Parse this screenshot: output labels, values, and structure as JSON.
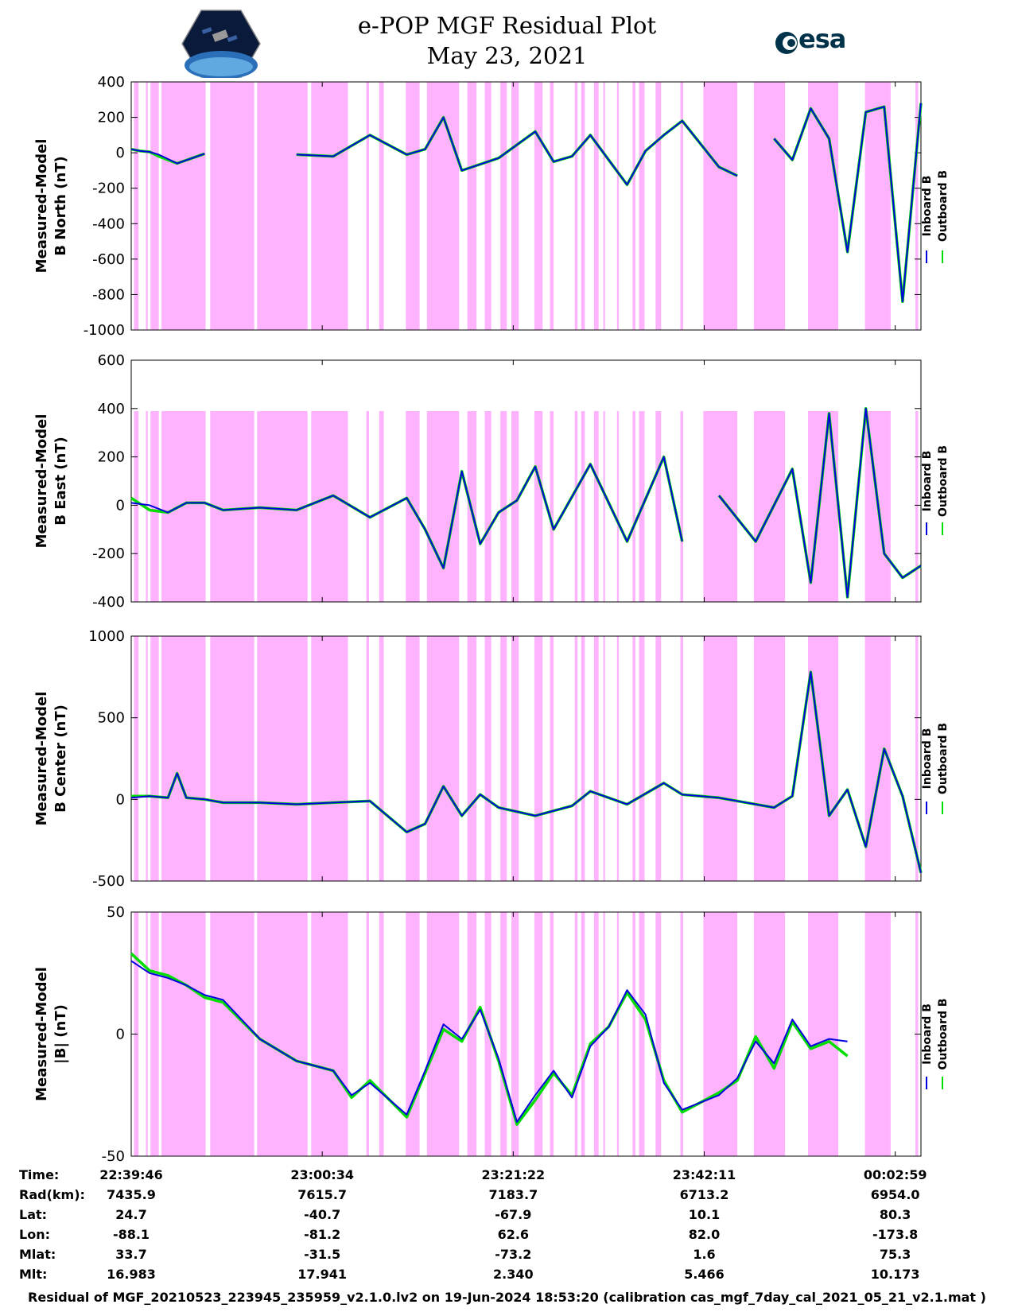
{
  "header": {
    "title": "e-POP MGF Residual Plot",
    "date": "May 23, 2021",
    "left_logo": "cassiope-mission-logo",
    "right_logo": "esa-logo",
    "right_logo_text": "esa"
  },
  "colors": {
    "inboard": "#0000dd",
    "outboard": "#00dd00",
    "gap_shading": "#ffb3ff"
  },
  "legend": {
    "inboard": "Inboard B",
    "outboard": "Outboard B"
  },
  "chart_data": [
    {
      "type": "line",
      "panel": "B North",
      "ylabel_line1": "Measured-Model",
      "ylabel_line2": "B North (nT)",
      "ylim": [
        -1000,
        400
      ],
      "yticks": [
        "400",
        "200",
        "0",
        "-200",
        "-400",
        "-600",
        "-800",
        "-1000"
      ],
      "ytick_values": [
        400,
        200,
        0,
        -200,
        -400,
        -600,
        -800,
        -1000
      ],
      "x_minutes": [
        0,
        1,
        2,
        3,
        5,
        8,
        10,
        12,
        14,
        18,
        22,
        26,
        30,
        32,
        34,
        36,
        40,
        44,
        46,
        48,
        50,
        54,
        56,
        58,
        60,
        64,
        66,
        68,
        70,
        72,
        74,
        76,
        78,
        80,
        82,
        84,
        86
      ],
      "series": [
        {
          "name": "Inboard B",
          "values": [
            20,
            10,
            5,
            -10,
            -60,
            -5,
            null,
            -5,
            null,
            -10,
            -20,
            100,
            -10,
            20,
            200,
            -100,
            -30,
            120,
            -50,
            -20,
            100,
            -180,
            10,
            100,
            180,
            -80,
            -130,
            null,
            80,
            -40,
            250,
            80,
            -560,
            230,
            260,
            -840,
            280
          ]
        },
        {
          "name": "Outboard B",
          "values": [
            20,
            10,
            5,
            -20,
            -60,
            -5,
            null,
            -5,
            null,
            -10,
            -20,
            100,
            -10,
            20,
            200,
            -100,
            -30,
            120,
            -50,
            -20,
            100,
            -180,
            10,
            100,
            180,
            -80,
            -130,
            null,
            80,
            -40,
            250,
            80,
            -560,
            230,
            260,
            -840,
            280
          ]
        }
      ]
    },
    {
      "type": "line",
      "panel": "B East",
      "ylabel_line1": "Measured-Model",
      "ylabel_line2": "B East (nT)",
      "ylim": [
        -400,
        600
      ],
      "yticks": [
        "600",
        "400",
        "200",
        "0",
        "-200",
        "-400"
      ],
      "ytick_values": [
        600,
        400,
        200,
        0,
        -200,
        -400
      ],
      "x_minutes": [
        0,
        2,
        4,
        6,
        8,
        10,
        14,
        18,
        22,
        26,
        30,
        32,
        34,
        36,
        38,
        40,
        42,
        44,
        46,
        50,
        54,
        58,
        60,
        62,
        64,
        68,
        72,
        74,
        76,
        78,
        80,
        82,
        84,
        86
      ],
      "series": [
        {
          "name": "Inboard B",
          "values": [
            10,
            0,
            -30,
            10,
            10,
            -20,
            -10,
            -20,
            40,
            -50,
            30,
            -100,
            -260,
            140,
            -160,
            -30,
            20,
            160,
            -100,
            170,
            -150,
            200,
            -150,
            null,
            40,
            -150,
            150,
            -320,
            380,
            -380,
            400,
            -200,
            -300,
            -250
          ]
        },
        {
          "name": "Outboard B",
          "values": [
            30,
            -20,
            -30,
            10,
            10,
            -20,
            -10,
            -20,
            40,
            -50,
            30,
            -100,
            -260,
            140,
            -160,
            -30,
            20,
            160,
            -100,
            170,
            -150,
            200,
            -150,
            null,
            40,
            -150,
            150,
            -320,
            380,
            -380,
            400,
            -200,
            -300,
            -250
          ]
        }
      ]
    },
    {
      "type": "line",
      "panel": "B Center",
      "ylabel_line1": "Measured-Model",
      "ylabel_line2": "B Center (nT)",
      "ylim": [
        -500,
        1000
      ],
      "yticks": [
        "1000",
        "500",
        "0",
        "-500"
      ],
      "ytick_values": [
        1000,
        500,
        0,
        -500
      ],
      "x_minutes": [
        0,
        2,
        4,
        5,
        6,
        8,
        10,
        14,
        18,
        22,
        26,
        30,
        32,
        34,
        36,
        38,
        40,
        44,
        48,
        50,
        54,
        58,
        60,
        64,
        70,
        72,
        74,
        76,
        78,
        80,
        82,
        84,
        86
      ],
      "series": [
        {
          "name": "Inboard B",
          "values": [
            10,
            20,
            10,
            160,
            10,
            0,
            -20,
            -20,
            -30,
            -20,
            -10,
            -200,
            -150,
            80,
            -100,
            30,
            -50,
            -100,
            -40,
            50,
            -30,
            100,
            30,
            10,
            -50,
            20,
            780,
            -100,
            60,
            -290,
            310,
            20,
            -450
          ]
        },
        {
          "name": "Outboard B",
          "values": [
            20,
            20,
            10,
            160,
            10,
            0,
            -20,
            -20,
            -30,
            -20,
            -10,
            -200,
            -150,
            80,
            -100,
            30,
            -50,
            -100,
            -40,
            50,
            -30,
            100,
            30,
            10,
            -50,
            20,
            780,
            -100,
            60,
            -290,
            310,
            20,
            -450
          ]
        }
      ]
    },
    {
      "type": "line",
      "panel": "|B|",
      "ylabel_line1": "Measured-Model",
      "ylabel_line2": "|B| (nT)",
      "ylim": [
        -50,
        50
      ],
      "yticks": [
        "50",
        "0",
        "-50"
      ],
      "ytick_values": [
        50,
        0,
        -50
      ],
      "x_minutes": [
        0,
        2,
        4,
        6,
        8,
        10,
        14,
        18,
        22,
        24,
        26,
        30,
        32,
        34,
        36,
        38,
        40,
        42,
        44,
        46,
        48,
        50,
        52,
        54,
        56,
        58,
        60,
        64,
        66,
        68,
        70,
        72,
        74,
        76,
        78,
        80,
        82,
        84,
        86
      ],
      "series": [
        {
          "name": "Inboard B",
          "values": [
            30,
            25,
            23,
            20,
            16,
            14,
            -2,
            -11,
            -15,
            -25,
            -20,
            -33,
            -15,
            4,
            -2,
            10,
            -10,
            -36,
            -25,
            -15,
            -26,
            -5,
            3,
            18,
            8,
            -20,
            -31,
            -25,
            -18,
            -3,
            -12,
            6,
            -5,
            -2,
            -3,
            null,
            null,
            null,
            null
          ]
        },
        {
          "name": "Outboard B",
          "values": [
            33,
            26,
            24,
            20,
            15,
            13,
            -2,
            -11,
            -15,
            -26,
            -19,
            -34,
            -16,
            2,
            -3,
            11,
            -11,
            -37,
            -27,
            -16,
            -25,
            -4,
            3,
            17,
            6,
            -19,
            -32,
            -24,
            -19,
            -1,
            -14,
            5,
            -6,
            -3,
            -9,
            null,
            null,
            null,
            null
          ]
        }
      ]
    }
  ],
  "gap_intervals_minutes": [
    [
      0.3,
      0.8
    ],
    [
      1.6,
      1.8
    ],
    [
      2.1,
      3.0
    ],
    [
      3.3,
      8.1
    ],
    [
      8.6,
      13.4
    ],
    [
      13.7,
      19.2
    ],
    [
      19.6,
      23.6
    ],
    [
      25.6,
      25.9
    ],
    [
      27.0,
      27.5
    ],
    [
      29.9,
      31.4
    ],
    [
      32.2,
      35.7
    ],
    [
      36.6,
      37.6
    ],
    [
      38.5,
      39.2
    ],
    [
      40.2,
      40.9
    ],
    [
      41.4,
      42.2
    ],
    [
      43.9,
      44.8
    ],
    [
      45.6,
      46.0
    ],
    [
      48.3,
      48.6
    ],
    [
      49.0,
      49.4
    ],
    [
      50.4,
      50.9
    ],
    [
      51.4,
      51.6
    ],
    [
      52.9,
      53.1
    ],
    [
      54.6,
      54.9
    ],
    [
      55.3,
      55.9
    ],
    [
      57.1,
      57.7
    ],
    [
      59.8,
      60.1
    ],
    [
      62.3,
      66.0
    ],
    [
      67.8,
      71.2
    ],
    [
      73.7,
      77.0
    ],
    [
      79.9,
      82.7
    ],
    [
      85.4,
      85.7
    ]
  ],
  "x_axis_minutes_span": 86,
  "x_tick_minutes": [
    0,
    20.8,
    41.6,
    62.4,
    83.2
  ],
  "info_table": {
    "row_labels": [
      "Time:",
      "Rad(km):",
      "Lat:",
      "Lon:",
      "Mlat:",
      "Mlt:"
    ],
    "columns": [
      [
        "22:39:46",
        "7435.9",
        "24.7",
        "-88.1",
        "33.7",
        "16.983"
      ],
      [
        "23:00:34",
        "7615.7",
        "-40.7",
        "-81.2",
        "-31.5",
        "17.941"
      ],
      [
        "23:21:22",
        "7183.7",
        "-67.9",
        "62.6",
        "-73.2",
        "2.340"
      ],
      [
        "23:42:11",
        "6713.2",
        "10.1",
        "82.0",
        "1.6",
        "5.466"
      ],
      [
        "00:02:59",
        "6954.0",
        "80.3",
        "-173.8",
        "75.3",
        "10.173"
      ]
    ]
  },
  "footer": "Residual of MGF_20210523_223945_235959_v2.1.0.lv2 on 19-Jun-2024 18:53:20 (calibration cas_mgf_7day_cal_2021_05_21_v2.1.mat )"
}
